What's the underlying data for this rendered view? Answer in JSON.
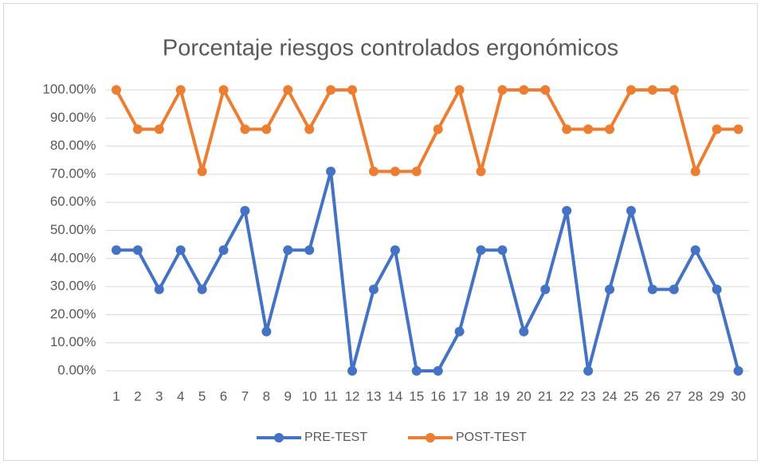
{
  "chart_data": {
    "type": "line",
    "title": "Porcentaje riesgos controlados ergonómicos",
    "categories": [
      "1",
      "2",
      "3",
      "4",
      "5",
      "6",
      "7",
      "8",
      "9",
      "10",
      "11",
      "12",
      "13",
      "14",
      "15",
      "16",
      "17",
      "18",
      "19",
      "20",
      "21",
      "22",
      "23",
      "24",
      "25",
      "26",
      "27",
      "28",
      "29",
      "30"
    ],
    "series": [
      {
        "name": "PRE-TEST",
        "color": "#4472c4",
        "values": [
          43,
          43,
          29,
          43,
          29,
          43,
          57,
          14,
          43,
          43,
          71,
          0,
          29,
          43,
          0,
          0,
          14,
          43,
          43,
          14,
          29,
          57,
          0,
          29,
          57,
          29,
          29,
          43,
          29,
          0
        ]
      },
      {
        "name": "POST-TEST",
        "color": "#ed7d31",
        "values": [
          100,
          86,
          86,
          100,
          71,
          100,
          86,
          86,
          100,
          86,
          100,
          100,
          71,
          71,
          71,
          86,
          100,
          71,
          100,
          100,
          100,
          86,
          86,
          86,
          100,
          100,
          100,
          71,
          86,
          86
        ]
      }
    ],
    "ylim": [
      0,
      100
    ],
    "yticks": [
      {
        "value": 0,
        "label": "0.00%"
      },
      {
        "value": 10,
        "label": "10.00%"
      },
      {
        "value": 20,
        "label": "20.00%"
      },
      {
        "value": 30,
        "label": "30.00%"
      },
      {
        "value": 40,
        "label": "40.00%"
      },
      {
        "value": 50,
        "label": "50.00%"
      },
      {
        "value": 60,
        "label": "60.00%"
      },
      {
        "value": 70,
        "label": "70.00%"
      },
      {
        "value": 80,
        "label": "80.00%"
      },
      {
        "value": 90,
        "label": "90.00%"
      },
      {
        "value": 100,
        "label": "100.00%"
      }
    ],
    "grid": true,
    "legend": "bottom"
  }
}
